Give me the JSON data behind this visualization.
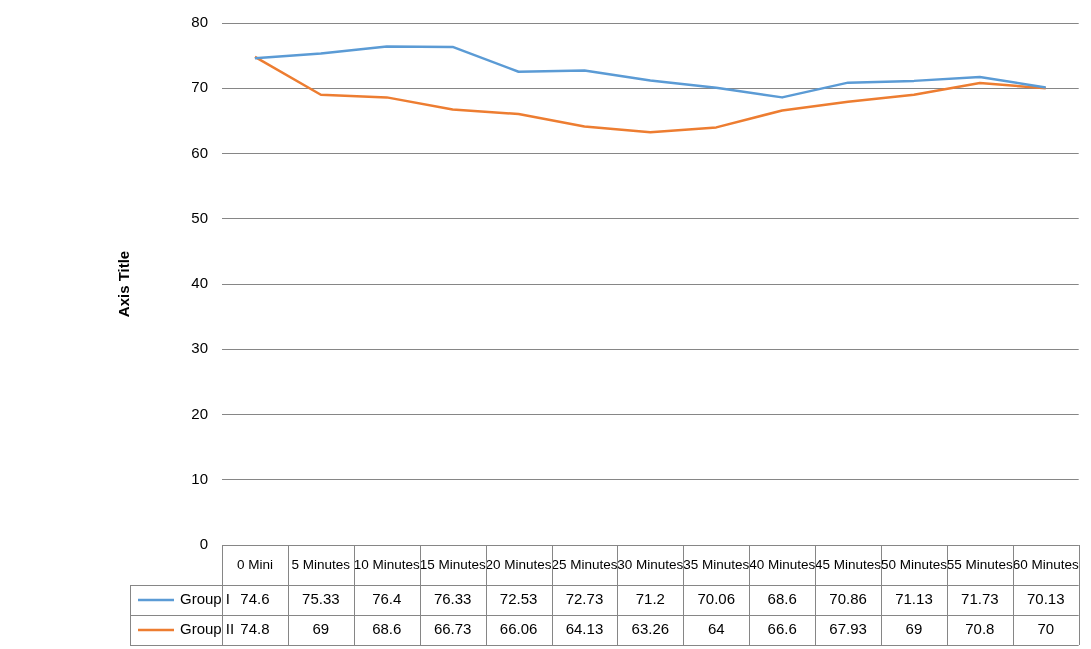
{
  "chart_data": {
    "type": "line",
    "ylabel": "Axis Title",
    "categories": [
      "0 Mini",
      "5 Minutes",
      "10 Minutes",
      "15 Minutes",
      "20 Minutes",
      "25 Minutes",
      "30 Minutes",
      "35 Minutes",
      "40 Minutes",
      "45 Minutes",
      "50 Minutes",
      "55 Minutes",
      "60 Minutes"
    ],
    "series": [
      {
        "name": "Group I",
        "color": "#5b9bd5",
        "values": [
          74.6,
          75.33,
          76.4,
          76.33,
          72.53,
          72.73,
          71.2,
          70.06,
          68.6,
          70.86,
          71.13,
          71.73,
          70.13
        ]
      },
      {
        "name": "Group II",
        "color": "#ed7d31",
        "values": [
          74.8,
          69,
          68.6,
          66.73,
          66.06,
          64.13,
          63.26,
          64,
          66.6,
          67.93,
          69,
          70.8,
          70
        ]
      }
    ],
    "ylim": [
      0,
      80
    ],
    "yticks": [
      0,
      10,
      20,
      30,
      40,
      50,
      60,
      70,
      80
    ],
    "grid": "y",
    "legend": "bottom",
    "data_labels": true,
    "marker": "none",
    "line_style": "solid"
  }
}
